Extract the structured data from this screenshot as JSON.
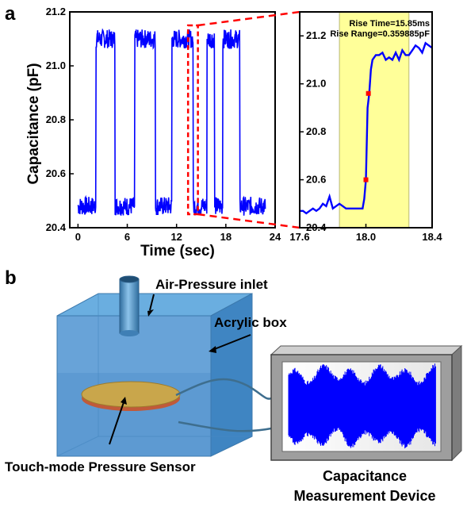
{
  "panel_a": {
    "letter": "a",
    "ylabel": "Capacitance (pF)",
    "xlabel": "Time (sec)"
  },
  "panel_b": {
    "letter": "b",
    "labels": {
      "air_inlet": "Air-Pressure inlet",
      "acrylic_box": "Acrylic box",
      "sensor": "Touch-mode Pressure Sensor",
      "device_line1": "Capacitance",
      "device_line2": "Measurement Device"
    },
    "colors": {
      "box": "#5b9bd5",
      "box_dark": "#3d7fb8",
      "sensor": "#c9a64b",
      "signal": "#0000ff",
      "device_frame": "#9e9e9e"
    }
  },
  "chart_data": [
    {
      "type": "line",
      "title": "",
      "xlabel": "Time (sec)",
      "ylabel": "Capacitance (pF)",
      "xlim": [
        -1,
        24
      ],
      "ylim": [
        20.4,
        21.2
      ],
      "xticks": [
        0,
        6,
        12,
        18,
        24
      ],
      "yticks": [
        20.4,
        20.6,
        20.8,
        21.0,
        21.2
      ],
      "series_color": "#0000ff",
      "pulses_on": [
        [
          2.2,
          4.5
        ],
        [
          6.9,
          9.4
        ],
        [
          11.4,
          14.0
        ],
        [
          15.7,
          16.6
        ],
        [
          17.6,
          19.7
        ]
      ],
      "low_level": 20.48,
      "high_level": 21.1,
      "zoom_box": {
        "x": [
          13.4,
          14.6
        ],
        "y": [
          20.45,
          21.15
        ],
        "color": "#ff0000"
      },
      "grid": false
    },
    {
      "type": "line",
      "title": "",
      "xlim": [
        17.6,
        18.4
      ],
      "ylim": [
        20.4,
        21.3
      ],
      "xticks": [
        "17.6",
        "18.0",
        "18.4"
      ],
      "yticks": [
        "20.4",
        "20.6",
        "20.8",
        "21.0",
        "21.2"
      ],
      "highlight_range": [
        17.84,
        18.26
      ],
      "highlight_color": "#ffff99",
      "series_color": "#0000ff",
      "x": [
        17.6,
        17.62,
        17.64,
        17.66,
        17.68,
        17.7,
        17.72,
        17.74,
        17.76,
        17.78,
        17.8,
        17.82,
        17.84,
        17.86,
        17.88,
        17.9,
        17.92,
        17.94,
        17.96,
        17.98,
        17.99,
        18.0,
        18.01,
        18.02,
        18.03,
        18.04,
        18.06,
        18.08,
        18.1,
        18.12,
        18.14,
        18.16,
        18.18,
        18.2,
        18.22,
        18.24,
        18.26,
        18.28,
        18.3,
        18.32,
        18.34,
        18.36,
        18.38,
        18.4
      ],
      "y": [
        20.47,
        20.47,
        20.46,
        20.47,
        20.48,
        20.47,
        20.48,
        20.5,
        20.49,
        20.53,
        20.48,
        20.49,
        20.5,
        20.49,
        20.48,
        20.48,
        20.48,
        20.48,
        20.48,
        20.48,
        20.52,
        20.6,
        20.9,
        20.96,
        21.06,
        21.1,
        21.12,
        21.12,
        21.13,
        21.1,
        21.11,
        21.1,
        21.13,
        21.1,
        21.14,
        21.12,
        21.12,
        21.14,
        21.16,
        21.15,
        21.13,
        21.17,
        21.16,
        21.15
      ],
      "markers": [
        {
          "x": 18.0,
          "y": 20.6
        },
        {
          "x": 18.015,
          "y": 20.96
        }
      ],
      "marker_color": "#ff0000",
      "annotations": [
        "Rise Time=15.85ms",
        "Rise Range=0.359885pF"
      ],
      "grid": false
    }
  ]
}
